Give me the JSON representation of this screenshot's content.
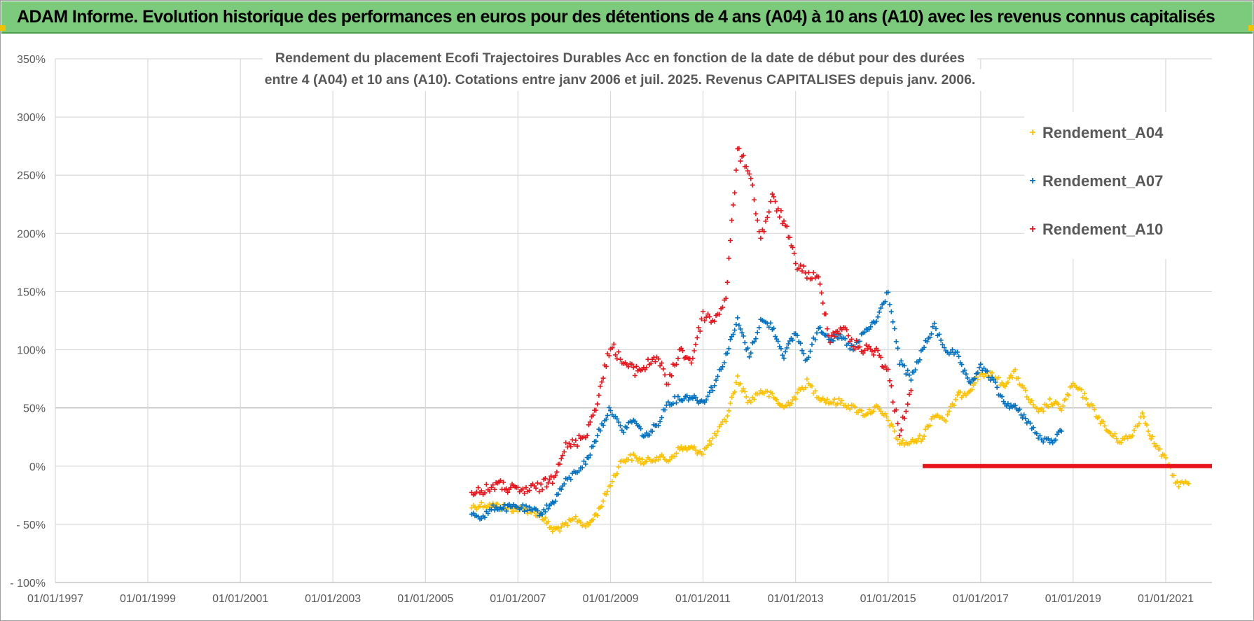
{
  "header": {
    "title": "ADAM Informe. Evolution historique des performances en euros pour des détentions de 4 ans (A04) à 10 ans (A10) avec les revenus connus capitalisés"
  },
  "colors": {
    "header_bg": "#7ccb7c",
    "A04": "#ffc000",
    "A07": "#0070c0",
    "A10": "#e8141c",
    "grid": "#d9d9d9",
    "axis_text": "#595959"
  },
  "chart_data": {
    "type": "scatter",
    "title_lines": [
      "Rendement du placement Ecofi Trajectoires Durables Acc en fonction de la date de début pour des durées",
      "entre 4 (A04) et 10 ans (A10).  Cotations entre janv 2006 et juil. 2025. Revenus CAPITALISES depuis janv. 2006."
    ],
    "xlabel": "",
    "ylabel": "",
    "x_ticks": [
      "01/01/1997",
      "01/01/1999",
      "01/01/2001",
      "01/01/2003",
      "01/01/2005",
      "01/01/2007",
      "01/01/2009",
      "01/01/2011",
      "01/01/2013",
      "01/01/2015",
      "01/01/2017",
      "01/01/2019",
      "01/01/2021"
    ],
    "x_range": [
      "1997-01-01",
      "2022-01-01"
    ],
    "y_ticks": [
      "- 100%",
      "- 50%",
      "0%",
      "50%",
      "100%",
      "150%",
      "200%",
      "250%",
      "300%",
      "350%"
    ],
    "ylim": [
      -100,
      350
    ],
    "grid": true,
    "legend_position": "top-right",
    "series": [
      {
        "name": "Rendement_A04",
        "color": "#ffc000",
        "points": [
          [
            "2006-01-01",
            -35
          ],
          [
            "2006-04-01",
            -33
          ],
          [
            "2006-07-01",
            -34
          ],
          [
            "2006-10-01",
            -36
          ],
          [
            "2007-01-01",
            -37
          ],
          [
            "2007-04-01",
            -38
          ],
          [
            "2007-07-01",
            -42
          ],
          [
            "2007-10-01",
            -55
          ],
          [
            "2008-01-01",
            -52
          ],
          [
            "2008-04-01",
            -45
          ],
          [
            "2008-07-01",
            -52
          ],
          [
            "2008-10-01",
            -38
          ],
          [
            "2009-01-01",
            -15
          ],
          [
            "2009-04-01",
            5
          ],
          [
            "2009-07-01",
            8
          ],
          [
            "2009-10-01",
            3
          ],
          [
            "2010-01-01",
            8
          ],
          [
            "2010-04-01",
            5
          ],
          [
            "2010-07-01",
            15
          ],
          [
            "2010-10-01",
            15
          ],
          [
            "2011-01-01",
            12
          ],
          [
            "2011-04-01",
            25
          ],
          [
            "2011-07-01",
            40
          ],
          [
            "2011-10-01",
            75
          ],
          [
            "2012-01-01",
            55
          ],
          [
            "2012-04-01",
            65
          ],
          [
            "2012-07-01",
            60
          ],
          [
            "2012-10-01",
            50
          ],
          [
            "2013-01-01",
            60
          ],
          [
            "2013-04-01",
            72
          ],
          [
            "2013-07-01",
            60
          ],
          [
            "2013-10-01",
            55
          ],
          [
            "2014-01-01",
            55
          ],
          [
            "2014-04-01",
            50
          ],
          [
            "2014-07-01",
            45
          ],
          [
            "2014-10-01",
            50
          ],
          [
            "2015-01-01",
            40
          ],
          [
            "2015-04-01",
            20
          ],
          [
            "2015-07-01",
            20
          ],
          [
            "2015-10-01",
            25
          ],
          [
            "2016-01-01",
            45
          ],
          [
            "2016-04-01",
            40
          ],
          [
            "2016-07-01",
            60
          ],
          [
            "2016-10-01",
            65
          ],
          [
            "2017-01-01",
            80
          ],
          [
            "2017-04-01",
            78
          ],
          [
            "2017-07-01",
            70
          ],
          [
            "2017-10-01",
            80
          ],
          [
            "2018-01-01",
            60
          ],
          [
            "2018-04-01",
            45
          ],
          [
            "2018-07-01",
            55
          ],
          [
            "2018-10-01",
            50
          ],
          [
            "2019-01-01",
            70
          ],
          [
            "2019-04-01",
            60
          ],
          [
            "2019-07-01",
            45
          ],
          [
            "2019-10-01",
            30
          ],
          [
            "2020-01-01",
            22
          ],
          [
            "2020-04-01",
            25
          ],
          [
            "2020-07-01",
            45
          ],
          [
            "2020-10-01",
            20
          ],
          [
            "2021-01-01",
            5
          ],
          [
            "2021-04-01",
            -15
          ],
          [
            "2021-07-01",
            -15
          ]
        ]
      },
      {
        "name": "Rendement_A07",
        "color": "#0070c0",
        "points": [
          [
            "2006-01-01",
            -40
          ],
          [
            "2006-04-01",
            -44
          ],
          [
            "2006-07-01",
            -35
          ],
          [
            "2006-10-01",
            -36
          ],
          [
            "2007-01-01",
            -35
          ],
          [
            "2007-04-01",
            -38
          ],
          [
            "2007-07-01",
            -40
          ],
          [
            "2007-10-01",
            -32
          ],
          [
            "2008-01-01",
            -15
          ],
          [
            "2008-04-01",
            -5
          ],
          [
            "2008-07-01",
            5
          ],
          [
            "2008-10-01",
            30
          ],
          [
            "2009-01-01",
            50
          ],
          [
            "2009-04-01",
            30
          ],
          [
            "2009-07-01",
            40
          ],
          [
            "2009-10-01",
            25
          ],
          [
            "2010-01-01",
            35
          ],
          [
            "2010-04-01",
            55
          ],
          [
            "2010-07-01",
            58
          ],
          [
            "2010-10-01",
            60
          ],
          [
            "2011-01-01",
            55
          ],
          [
            "2011-04-01",
            70
          ],
          [
            "2011-07-01",
            95
          ],
          [
            "2011-10-01",
            125
          ],
          [
            "2012-01-01",
            95
          ],
          [
            "2012-04-01",
            125
          ],
          [
            "2012-07-01",
            120
          ],
          [
            "2012-10-01",
            95
          ],
          [
            "2013-01-01",
            115
          ],
          [
            "2013-04-01",
            90
          ],
          [
            "2013-07-01",
            120
          ],
          [
            "2013-10-01",
            110
          ],
          [
            "2014-01-01",
            110
          ],
          [
            "2014-04-01",
            100
          ],
          [
            "2014-07-01",
            115
          ],
          [
            "2014-10-01",
            125
          ],
          [
            "2015-01-01",
            150
          ],
          [
            "2015-04-01",
            90
          ],
          [
            "2015-07-01",
            75
          ],
          [
            "2015-10-01",
            100
          ],
          [
            "2016-01-01",
            120
          ],
          [
            "2016-04-01",
            100
          ],
          [
            "2016-07-01",
            95
          ],
          [
            "2016-10-01",
            70
          ],
          [
            "2017-01-01",
            85
          ],
          [
            "2017-04-01",
            75
          ],
          [
            "2017-07-01",
            55
          ],
          [
            "2017-10-01",
            50
          ],
          [
            "2018-01-01",
            40
          ],
          [
            "2018-04-01",
            25
          ],
          [
            "2018-07-01",
            20
          ],
          [
            "2018-10-01",
            30
          ]
        ]
      },
      {
        "name": "Rendement_A10",
        "color": "#e8141c",
        "points": [
          [
            "2006-01-01",
            -20
          ],
          [
            "2006-04-01",
            -22
          ],
          [
            "2006-07-01",
            -16
          ],
          [
            "2006-10-01",
            -18
          ],
          [
            "2007-01-01",
            -22
          ],
          [
            "2007-04-01",
            -20
          ],
          [
            "2007-07-01",
            -18
          ],
          [
            "2007-10-01",
            -10
          ],
          [
            "2008-01-01",
            15
          ],
          [
            "2008-04-01",
            20
          ],
          [
            "2008-07-01",
            30
          ],
          [
            "2008-10-01",
            60
          ],
          [
            "2009-01-01",
            105
          ],
          [
            "2009-04-01",
            90
          ],
          [
            "2009-07-01",
            82
          ],
          [
            "2009-10-01",
            85
          ],
          [
            "2010-01-01",
            95
          ],
          [
            "2010-04-01",
            70
          ],
          [
            "2010-07-01",
            100
          ],
          [
            "2010-10-01",
            90
          ],
          [
            "2011-01-01",
            130
          ],
          [
            "2011-04-01",
            125
          ],
          [
            "2011-07-01",
            145
          ],
          [
            "2011-10-01",
            270
          ],
          [
            "2012-01-01",
            255
          ],
          [
            "2012-04-01",
            195
          ],
          [
            "2012-07-01",
            230
          ],
          [
            "2012-10-01",
            210
          ],
          [
            "2013-01-01",
            175
          ],
          [
            "2013-04-01",
            165
          ],
          [
            "2013-07-01",
            160
          ],
          [
            "2013-10-01",
            110
          ],
          [
            "2014-01-01",
            120
          ],
          [
            "2014-04-01",
            105
          ],
          [
            "2014-07-01",
            100
          ],
          [
            "2014-10-01",
            100
          ],
          [
            "2015-01-01",
            80
          ],
          [
            "2015-04-01",
            30
          ],
          [
            "2015-07-01",
            65
          ]
        ],
        "zero_segment": {
          "x_start": "2015-10-01",
          "x_end": "2022-01-01",
          "y": 0
        }
      }
    ]
  }
}
